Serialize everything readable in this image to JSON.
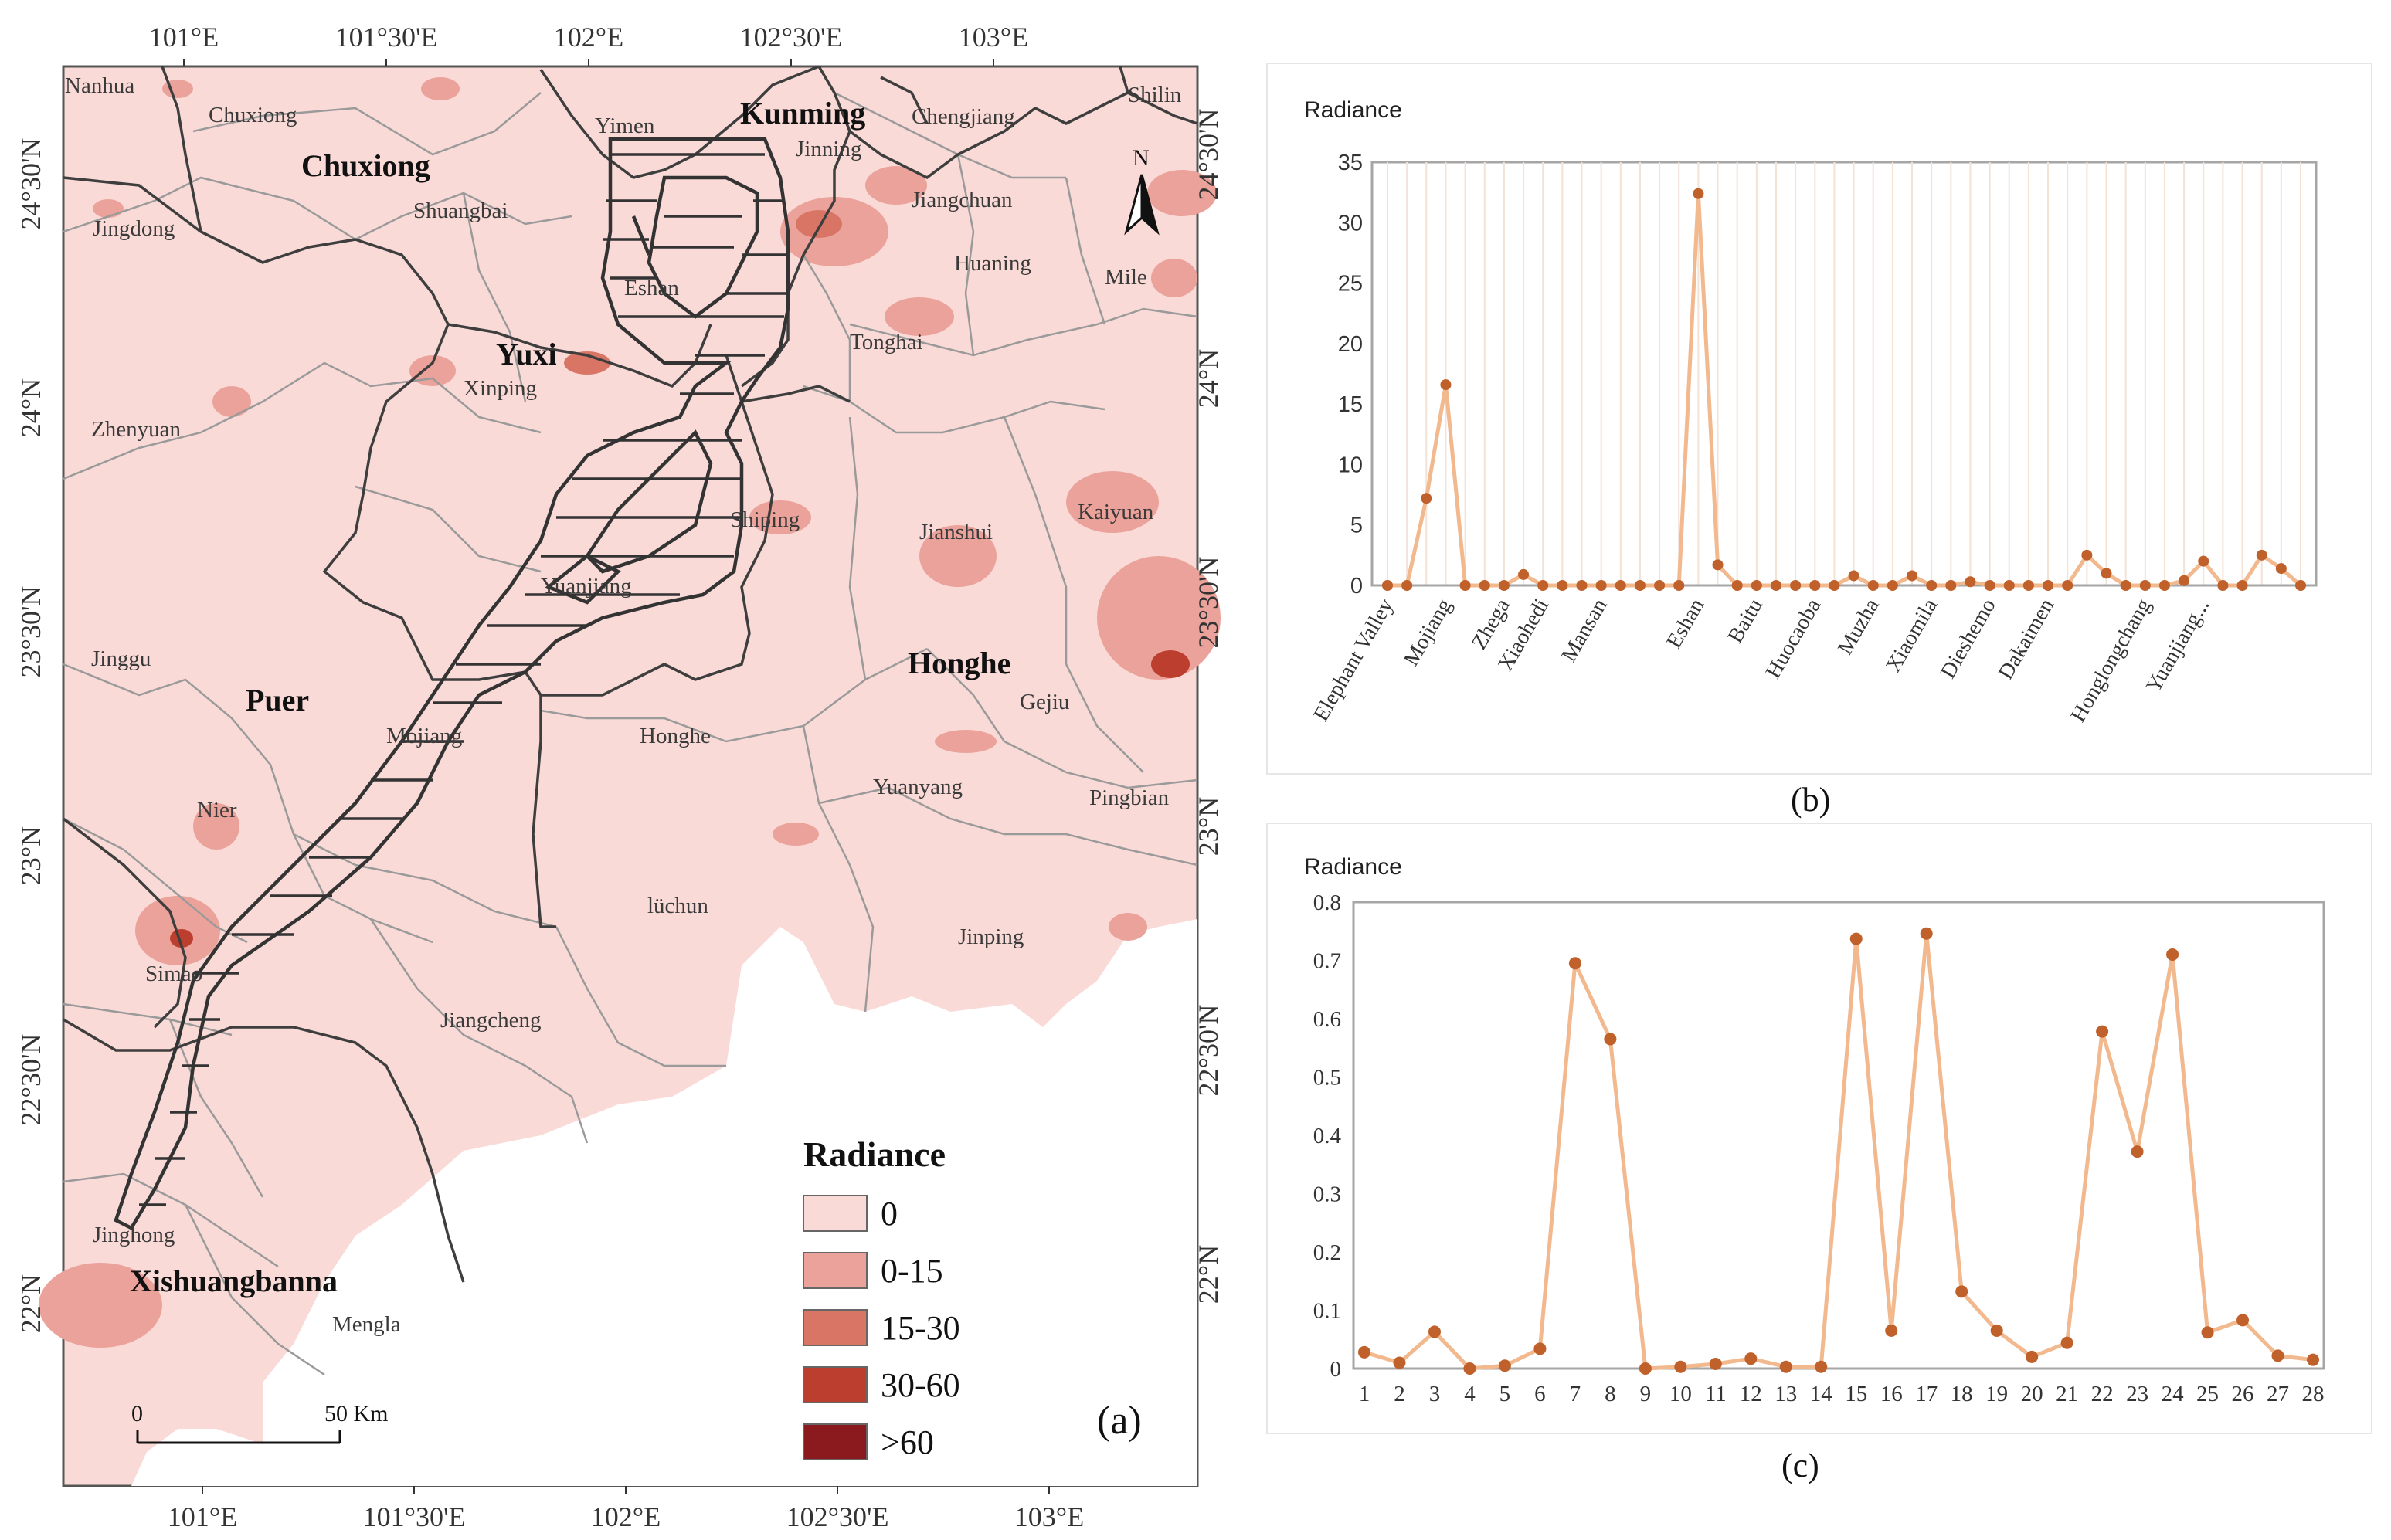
{
  "map": {
    "panel_label": "(a)",
    "lon_ticks_top": [
      "101°E",
      "101°30'E",
      "102°E",
      "102°30'E",
      "103°E"
    ],
    "lon_ticks_bottom": [
      "101°E",
      "101°30'E",
      "102°E",
      "102°30'E",
      "103°E"
    ],
    "lat_ticks_left": [
      "24°30'N",
      "24°N",
      "23°30'N",
      "23°N",
      "22°30'N",
      "22°N"
    ],
    "lat_ticks_right": [
      "24°30'N",
      "24°N",
      "23°30'N",
      "23°N",
      "22°30'N",
      "22°N"
    ],
    "prefectures": [
      "Chuxiong",
      "Kunming",
      "Yuxi",
      "Puer",
      "Honghe",
      "Xishuangbanna"
    ],
    "counties": [
      "Nanhua",
      "Chuxiong",
      "Yimen",
      "Chengjiang",
      "Shilin",
      "Jinning",
      "Jingdong",
      "Shuangbai",
      "Jiangchuan",
      "Tonghai",
      "Huaning",
      "Mile",
      "Eshan",
      "Xinping",
      "Zhenyuan",
      "Shiping",
      "Jianshui",
      "Kaiyuan",
      "Yuanjiang",
      "Jinggu",
      "Gejiu",
      "Mojiang",
      "Honghe",
      "Yuanyang",
      "Pingbian",
      "Nier",
      "lüchun",
      "Jinping",
      "Simao",
      "Jiangcheng",
      "Jinghong",
      "Mengla"
    ],
    "north_arrow_label": "N",
    "scale_bar": {
      "start": "0",
      "end": "50 Km"
    },
    "legend": {
      "title": "Radiance",
      "items": [
        {
          "label": "0",
          "color": "#fadad7"
        },
        {
          "label": "0-15",
          "color": "#eba29a"
        },
        {
          "label": "15-30",
          "color": "#d97565"
        },
        {
          "label": "30-60",
          "color": "#bb3e2f"
        },
        {
          "label": ">60",
          "color": "#8b1a1e"
        }
      ]
    }
  },
  "chart_b": {
    "panel_label": "(b)",
    "chart_data": {
      "type": "line",
      "ylabel": "Radiance",
      "ylim": [
        0,
        35
      ],
      "yticks": [
        0,
        5,
        10,
        15,
        20,
        25,
        30,
        35
      ],
      "tick_labels": [
        "Elephant Valley",
        "Mojiang",
        "Zhega",
        "Xiaohedi",
        "Mansan",
        "Eshan",
        "Baitu",
        "Huocaoba",
        "Muzha",
        "Xiaomila",
        "Dieshemo",
        "Dakaimen",
        "Honglongchang",
        "Yuanjiang..."
      ],
      "tick_label_indices": [
        0,
        3,
        6,
        8,
        11,
        16,
        19,
        22,
        25,
        28,
        31,
        34,
        39,
        42
      ],
      "values": [
        0,
        0,
        7.2,
        16.6,
        0,
        0,
        0,
        0.9,
        0,
        0,
        0,
        0,
        0,
        0,
        0,
        0,
        32.4,
        1.7,
        0,
        0,
        0,
        0,
        0,
        0,
        0.8,
        0,
        0,
        0.8,
        0,
        0,
        0.3,
        0,
        0,
        0,
        0,
        0,
        2.5,
        1.0,
        0,
        0,
        0,
        0.4,
        2.0,
        0,
        0,
        2.5,
        1.4,
        0
      ],
      "line_color": "#f2b88e",
      "marker_color": "#c0602a"
    }
  },
  "chart_c": {
    "panel_label": "(c)",
    "chart_data": {
      "type": "line",
      "ylabel": "Radiance",
      "ylim": [
        0,
        0.8
      ],
      "yticks": [
        0,
        0.1,
        0.2,
        0.3,
        0.4,
        0.5,
        0.6,
        0.7,
        0.8
      ],
      "categories": [
        "1",
        "2",
        "3",
        "4",
        "5",
        "6",
        "7",
        "8",
        "9",
        "10",
        "11",
        "12",
        "13",
        "14",
        "15",
        "16",
        "17",
        "18",
        "19",
        "20",
        "21",
        "22",
        "23",
        "24",
        "25",
        "26",
        "27",
        "28"
      ],
      "values": [
        0.028,
        0.01,
        0.063,
        0,
        0.005,
        0.034,
        0.695,
        0.565,
        0,
        0.003,
        0.008,
        0.017,
        0.003,
        0.003,
        0.737,
        0.065,
        0.746,
        0.132,
        0.065,
        0.02,
        0.044,
        0.578,
        0.372,
        0.71,
        0.062,
        0.083,
        0.022,
        0.015
      ],
      "line_color": "#f2b88e",
      "marker_color": "#c0602a"
    }
  }
}
